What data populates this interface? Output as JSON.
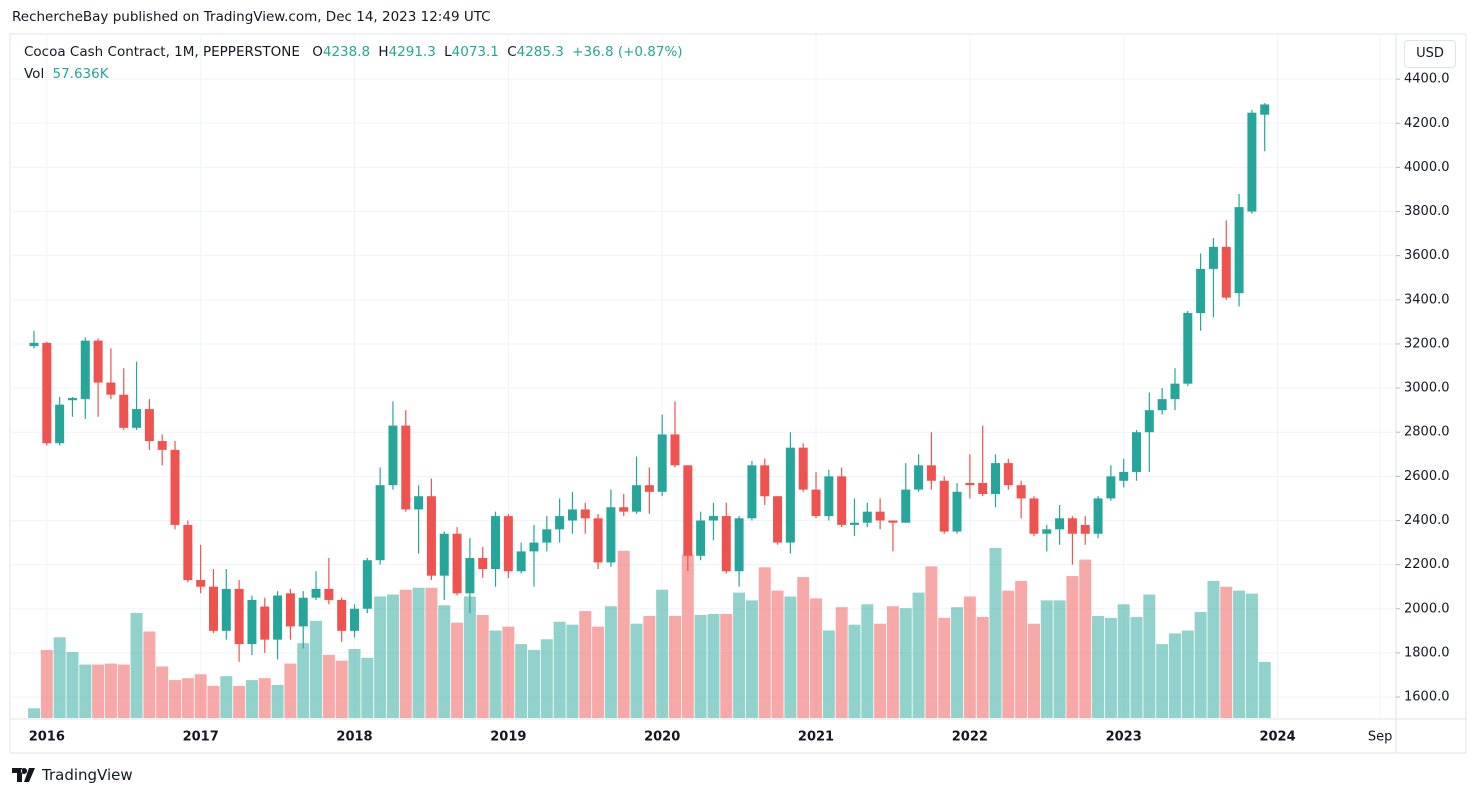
{
  "header": {
    "publisher": "RechercheBay published on TradingView.com, Dec 14, 2023 12:49 UTC"
  },
  "legend": {
    "symbol": "Cocoa Cash Contract, 1M, PEPPERSTONE",
    "o_label": "O",
    "open": 4238.8,
    "h_label": "H",
    "high": 4291.3,
    "l_label": "L",
    "low": 4073.1,
    "c_label": "C",
    "close": 4285.3,
    "change": "+36.8 (+0.87%)",
    "vol_label": "Vol",
    "vol": "57.636K"
  },
  "currency": "USD",
  "footer": {
    "brand": "TradingView"
  },
  "chart_data": {
    "type": "candlestick",
    "up_color": "#26a69a",
    "down_color": "#ef5350",
    "grid": true,
    "ylim": [
      1505,
      4600
    ],
    "yticks": [
      {
        "value": 1600,
        "label": "1600.0"
      },
      {
        "value": 1800,
        "label": "1800.0"
      },
      {
        "value": 2000,
        "label": "2000.0"
      },
      {
        "value": 2200,
        "label": "2200.0"
      },
      {
        "value": 2400,
        "label": "2400.0"
      },
      {
        "value": 2600,
        "label": "2600.0"
      },
      {
        "value": 2800,
        "label": "2800.0"
      },
      {
        "value": 3000,
        "label": "3000.0"
      },
      {
        "value": 3200,
        "label": "3200.0"
      },
      {
        "value": 3400,
        "label": "3400.0"
      },
      {
        "value": 3600,
        "label": "3600.0"
      },
      {
        "value": 3800,
        "label": "3800.0"
      },
      {
        "value": 4000,
        "label": "4000.0"
      },
      {
        "value": 4200,
        "label": "4200.0"
      },
      {
        "value": 4400,
        "label": "4400.0"
      }
    ],
    "xticks": [
      {
        "value": 1,
        "label": "2016"
      },
      {
        "value": 13,
        "label": "2017"
      },
      {
        "value": 25,
        "label": "2018"
      },
      {
        "value": 37,
        "label": "2019"
      },
      {
        "value": 49,
        "label": "2020"
      },
      {
        "value": 61,
        "label": "2021"
      },
      {
        "value": 73,
        "label": "2022"
      },
      {
        "value": 85,
        "label": "2023"
      },
      {
        "value": 97,
        "label": "2024"
      },
      {
        "value": 105,
        "label": "Sep"
      }
    ],
    "open": [
      3190,
      3205,
      2750,
      2945,
      2950,
      3215,
      3025,
      2970,
      2820,
      2905,
      2760,
      2720,
      2380,
      2130,
      2100,
      1900,
      2090,
      1840,
      2010,
      1860,
      2070,
      1920,
      2050,
      2090,
      2040,
      1900,
      2000,
      2220,
      2560,
      2830,
      2450,
      2510,
      2150,
      2340,
      2070,
      2230,
      2180,
      2420,
      2170,
      2260,
      2300,
      2360,
      2400,
      2450,
      2410,
      2210,
      2460,
      2440,
      2560,
      2530,
      2790,
      2650,
      2240,
      2400,
      2420,
      2170,
      2410,
      2650,
      2510,
      2300,
      2730,
      2540,
      2420,
      2600,
      2380,
      2390,
      2440,
      2400,
      2390,
      2540,
      2650,
      2580,
      2350,
      2570,
      2570,
      2520,
      2660,
      2560,
      2500,
      2340,
      2360,
      2410,
      2380,
      2340,
      2500,
      2580,
      2620,
      2800,
      2900,
      2950,
      3020,
      3340,
      3540,
      3640,
      3430,
      3800,
      4238.8
    ],
    "high": [
      3260,
      3210,
      2960,
      2960,
      3230,
      3225,
      3180,
      3090,
      3120,
      2950,
      2790,
      2760,
      2400,
      2290,
      2180,
      2180,
      2130,
      2060,
      2050,
      2080,
      2090,
      2080,
      2170,
      2230,
      2050,
      2020,
      2230,
      2640,
      2940,
      2900,
      2560,
      2590,
      2350,
      2370,
      2320,
      2280,
      2440,
      2430,
      2300,
      2380,
      2420,
      2500,
      2530,
      2480,
      2430,
      2540,
      2520,
      2690,
      2640,
      2880,
      2940,
      2650,
      2440,
      2480,
      2480,
      2420,
      2670,
      2680,
      2510,
      2800,
      2750,
      2620,
      2630,
      2640,
      2500,
      2480,
      2500,
      2400,
      2660,
      2700,
      2800,
      2600,
      2570,
      2700,
      2830,
      2700,
      2680,
      2580,
      2510,
      2380,
      2470,
      2420,
      2420,
      2510,
      2650,
      2680,
      2810,
      2980,
      3000,
      3090,
      3350,
      3610,
      3680,
      3760,
      3880,
      4260,
      4291.3
    ],
    "low": [
      3180,
      2740,
      2740,
      2870,
      2860,
      2870,
      2950,
      2810,
      2810,
      2720,
      2650,
      2360,
      2120,
      2070,
      1890,
      1860,
      1760,
      1790,
      1800,
      1770,
      1860,
      1820,
      2040,
      2020,
      1850,
      1870,
      1980,
      2200,
      2540,
      2440,
      2250,
      2130,
      2040,
      2060,
      1980,
      2140,
      2100,
      2140,
      2160,
      2100,
      2260,
      2300,
      2340,
      2340,
      2180,
      2190,
      2420,
      2430,
      2430,
      2510,
      2640,
      2170,
      2220,
      2310,
      2160,
      2100,
      2400,
      2470,
      2290,
      2250,
      2530,
      2410,
      2400,
      2370,
      2330,
      2370,
      2360,
      2260,
      2390,
      2530,
      2540,
      2340,
      2340,
      2500,
      2510,
      2460,
      2540,
      2410,
      2330,
      2260,
      2290,
      2200,
      2290,
      2320,
      2490,
      2550,
      2580,
      2620,
      2880,
      2900,
      3010,
      3260,
      3320,
      3400,
      3370,
      3790,
      4073.1
    ],
    "close": [
      3205,
      2750,
      2925,
      2955,
      3215,
      3025,
      2970,
      2820,
      2905,
      2760,
      2720,
      2380,
      2130,
      2100,
      1900,
      2090,
      1840,
      2040,
      1860,
      2060,
      1920,
      2050,
      2090,
      2040,
      1900,
      2000,
      2220,
      2560,
      2830,
      2450,
      2510,
      2150,
      2340,
      2070,
      2230,
      2180,
      2420,
      2170,
      2260,
      2300,
      2360,
      2420,
      2450,
      2410,
      2210,
      2460,
      2440,
      2560,
      2530,
      2790,
      2650,
      2240,
      2400,
      2420,
      2170,
      2410,
      2650,
      2510,
      2300,
      2730,
      2540,
      2420,
      2600,
      2380,
      2390,
      2440,
      2400,
      2390,
      2540,
      2650,
      2580,
      2350,
      2530,
      2560,
      2520,
      2660,
      2560,
      2500,
      2340,
      2360,
      2410,
      2340,
      2340,
      2500,
      2600,
      2620,
      2800,
      2900,
      2950,
      3020,
      3340,
      3540,
      3640,
      3410,
      3820,
      4248,
      4285.3
    ],
    "volume": [
      10,
      70,
      83,
      68,
      55,
      55,
      56,
      55,
      108,
      89,
      53,
      39,
      41,
      45,
      33,
      43,
      33,
      39,
      41,
      34,
      56,
      77,
      100,
      65,
      59,
      71,
      62,
      125,
      127,
      132,
      134,
      134,
      116,
      98,
      125,
      106,
      90,
      94,
      76,
      70,
      81,
      99,
      96,
      110,
      94,
      115,
      172,
      97,
      105,
      132,
      105,
      168,
      106,
      107,
      107,
      129,
      121,
      155,
      131,
      125,
      145,
      123,
      90,
      114,
      96,
      117,
      97,
      115,
      113,
      129,
      156,
      103,
      114,
      125,
      104,
      175,
      131,
      141,
      97,
      121,
      121,
      146,
      163,
      105,
      103,
      117,
      104,
      127,
      76,
      87,
      90,
      109,
      141,
      135,
      131,
      128,
      57.636
    ]
  }
}
